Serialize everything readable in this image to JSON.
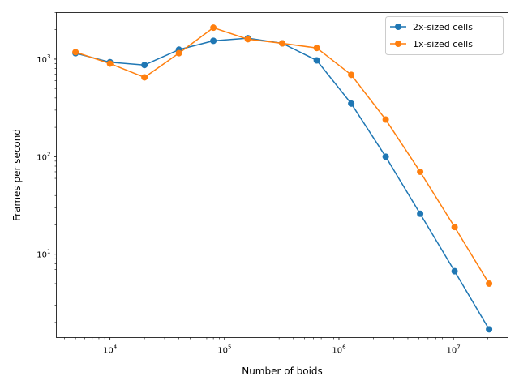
{
  "chart_data": {
    "type": "line",
    "title": "",
    "xlabel": "Number of boids",
    "ylabel": "Frames per second",
    "xscale": "log",
    "yscale": "log",
    "xlim": [
      3400,
      30000000
    ],
    "ylim": [
      1.4,
      3000
    ],
    "grid": false,
    "legend_position": "top-right",
    "x_ticks": [
      {
        "value": 10000,
        "base": "10",
        "exp": "4"
      },
      {
        "value": 100000,
        "base": "10",
        "exp": "5"
      },
      {
        "value": 1000000,
        "base": "10",
        "exp": "6"
      },
      {
        "value": 10000000,
        "base": "10",
        "exp": "7"
      }
    ],
    "y_ticks": [
      {
        "value": 10,
        "base": "10",
        "exp": "1"
      },
      {
        "value": 100,
        "base": "10",
        "exp": "2"
      },
      {
        "value": 1000,
        "base": "10",
        "exp": "3"
      }
    ],
    "x": [
      5000,
      10000,
      20000,
      40000,
      80000,
      160000,
      320000,
      640000,
      1280000,
      2560000,
      5120000,
      10240000,
      20480000
    ],
    "series": [
      {
        "name": "2x-sized cells",
        "color": "#1f77b4",
        "values": [
          1150,
          930,
          870,
          1250,
          1540,
          1640,
          1450,
          970,
          350,
          100,
          26,
          6.7,
          1.7
        ]
      },
      {
        "name": "1x-sized cells",
        "color": "#ff7f0e",
        "values": [
          1180,
          900,
          650,
          1150,
          2100,
          1600,
          1450,
          1300,
          690,
          240,
          70,
          19,
          5.0
        ]
      }
    ]
  }
}
